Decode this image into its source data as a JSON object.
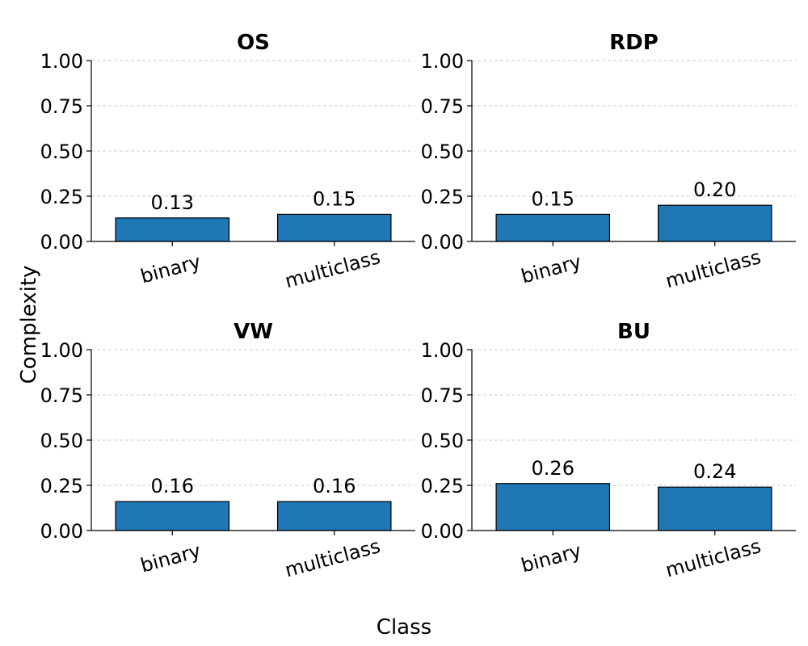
{
  "figure": {
    "ylabel": "Complexity",
    "xlabel": "Class"
  },
  "colors": {
    "bar": "#1f77b4"
  },
  "chart_data": [
    {
      "type": "bar",
      "title": "OS",
      "categories": [
        "binary",
        "multiclass"
      ],
      "values": [
        0.13,
        0.15
      ],
      "value_labels": [
        "0.13",
        "0.15"
      ],
      "ylim": [
        0,
        1
      ],
      "yticks": [
        "0.00",
        "0.25",
        "0.50",
        "0.75",
        "1.00"
      ],
      "grid": "y"
    },
    {
      "type": "bar",
      "title": "RDP",
      "categories": [
        "binary",
        "multiclass"
      ],
      "values": [
        0.15,
        0.2
      ],
      "value_labels": [
        "0.15",
        "0.20"
      ],
      "ylim": [
        0,
        1
      ],
      "yticks": [
        "0.00",
        "0.25",
        "0.50",
        "0.75",
        "1.00"
      ],
      "grid": "y"
    },
    {
      "type": "bar",
      "title": "VW",
      "categories": [
        "binary",
        "multiclass"
      ],
      "values": [
        0.16,
        0.16
      ],
      "value_labels": [
        "0.16",
        "0.16"
      ],
      "ylim": [
        0,
        1
      ],
      "yticks": [
        "0.00",
        "0.25",
        "0.50",
        "0.75",
        "1.00"
      ],
      "grid": "y"
    },
    {
      "type": "bar",
      "title": "BU",
      "categories": [
        "binary",
        "multiclass"
      ],
      "values": [
        0.26,
        0.24
      ],
      "value_labels": [
        "0.26",
        "0.24"
      ],
      "ylim": [
        0,
        1
      ],
      "yticks": [
        "0.00",
        "0.25",
        "0.50",
        "0.75",
        "1.00"
      ],
      "grid": "y"
    }
  ]
}
